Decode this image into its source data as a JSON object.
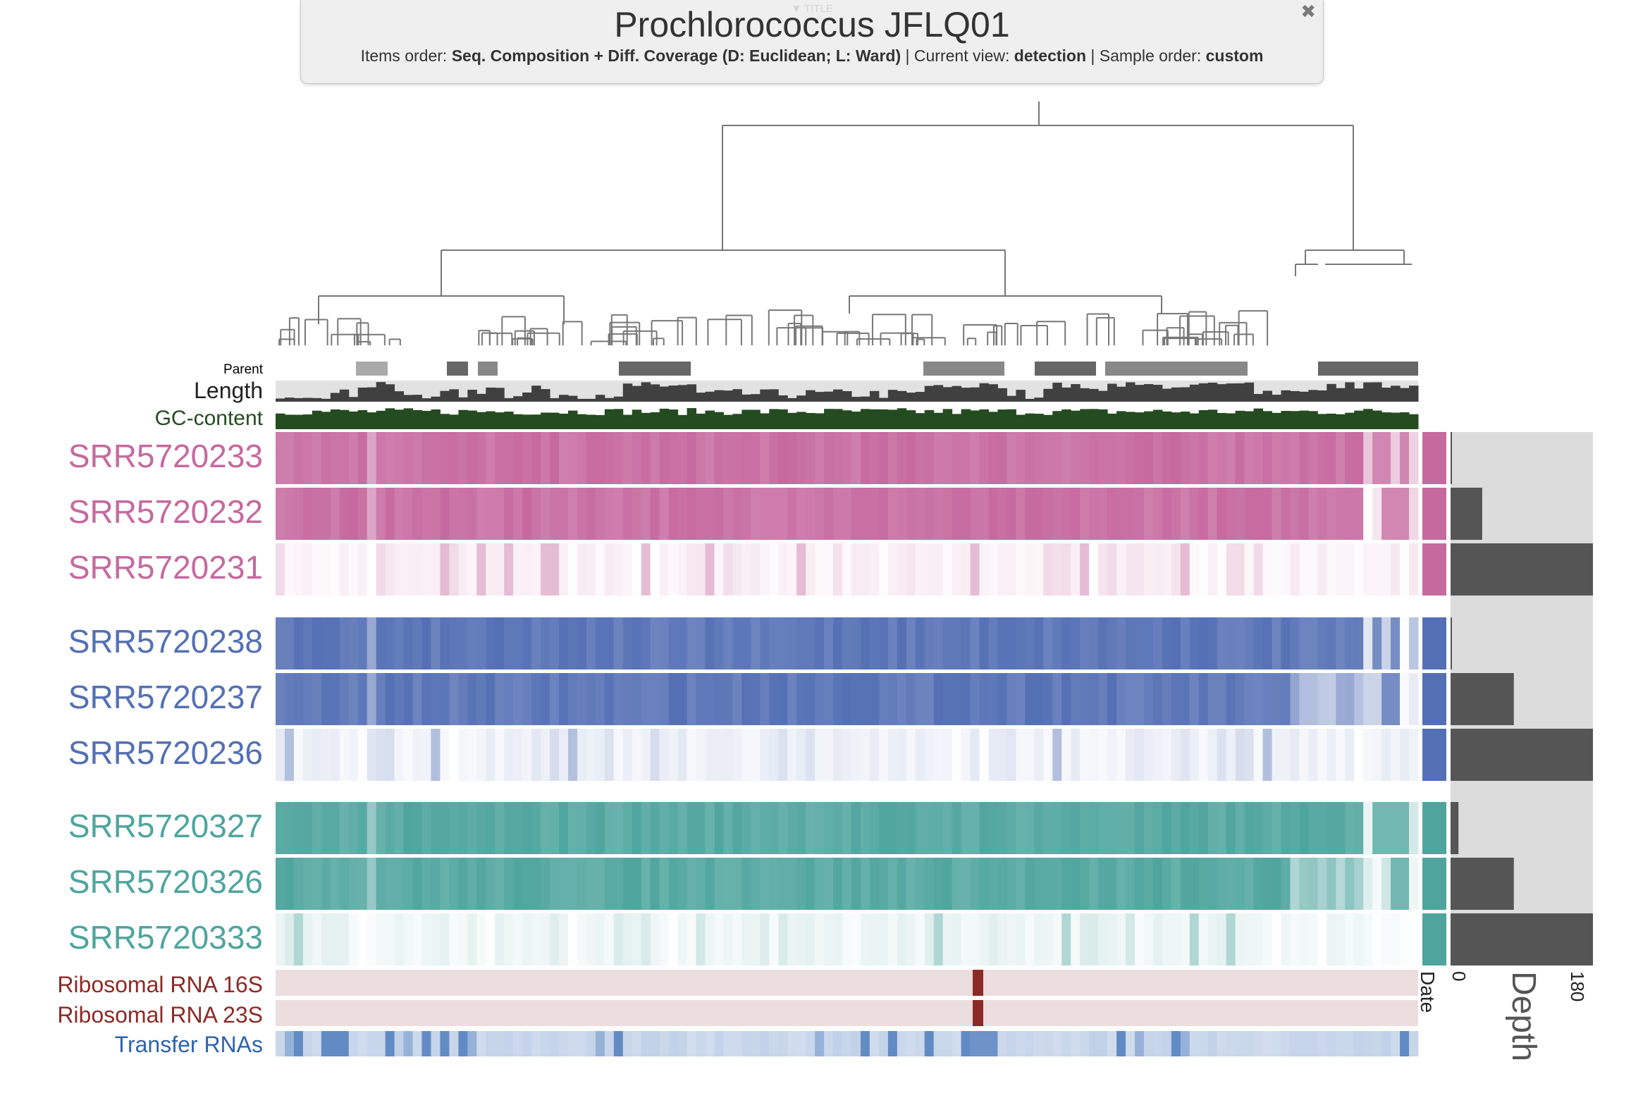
{
  "title": {
    "ghost_toggle": "▼ TITLE",
    "main": "Prochlorococcus JFLQ01",
    "items_order_label": "Items order: ",
    "items_order_value": "Seq. Composition + Diff. Coverage (D: Euclidean; L: Ward)",
    "view_label": " | Current view: ",
    "view_value": "detection",
    "sample_label": " | Sample order: ",
    "sample_value": "custom",
    "close_glyph": "✖"
  },
  "layers": {
    "parent": "Parent",
    "length": "Length",
    "gc": "GC-content",
    "rrna16": "Ribosomal RNA 16S",
    "rrna23": "Ribosomal RNA 23S",
    "trna": "Transfer RNAs"
  },
  "samples": [
    {
      "name": "SRR5720233",
      "group": "pink",
      "depth": 1
    },
    {
      "name": "SRR5720232",
      "group": "pink",
      "depth": 40
    },
    {
      "name": "SRR5720231",
      "group": "pink",
      "depth": 180
    },
    {
      "name": "SRR5720238",
      "group": "blue",
      "depth": 1
    },
    {
      "name": "SRR5720237",
      "group": "blue",
      "depth": 80
    },
    {
      "name": "SRR5720236",
      "group": "blue",
      "depth": 180
    },
    {
      "name": "SRR5720327",
      "group": "teal",
      "depth": 10
    },
    {
      "name": "SRR5720326",
      "group": "teal",
      "depth": 80
    },
    {
      "name": "SRR5720333",
      "group": "teal",
      "depth": 180
    }
  ],
  "colors": {
    "pink": "#c6699f",
    "blue": "#5470b4",
    "teal": "#4fa59e",
    "length_bar": "#404040",
    "gc_bar": "#244c20",
    "rrna": "#8c2a26",
    "trna": "#2e64b0",
    "depth_bar": "#555555"
  },
  "misc_columns": {
    "date_label": "Date",
    "depth_label": "Depth",
    "depth_min": "0",
    "depth_max": "180"
  },
  "icons": {
    "close": "close-icon"
  }
}
